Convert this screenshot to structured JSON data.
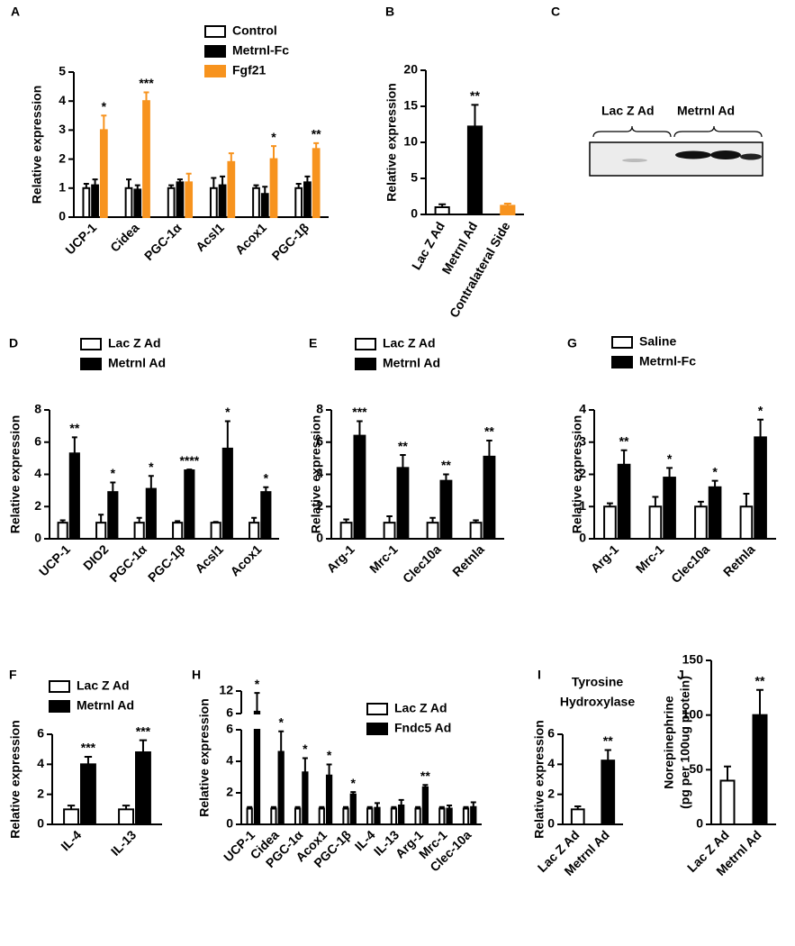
{
  "chart_data": [
    {
      "type": "bar",
      "panel": "A",
      "ylabel": "Relative expression",
      "ylim": [
        0,
        5
      ],
      "yticks": [
        0,
        1,
        2,
        3,
        4,
        5
      ],
      "categories": [
        "UCP-1",
        "Cidea",
        "PGC-1α",
        "Acsl1",
        "Acox1",
        "PGC-1β"
      ],
      "series": [
        {
          "name": "Control",
          "color": "#ffffff",
          "values": [
            1,
            1,
            1,
            1,
            1,
            1
          ],
          "errors": [
            0.15,
            0.3,
            0.1,
            0.35,
            0.1,
            0.15
          ]
        },
        {
          "name": "Metrnl-Fc",
          "color": "#000000",
          "values": [
            1.1,
            0.95,
            1.2,
            1.1,
            0.8,
            1.2
          ],
          "errors": [
            0.2,
            0.15,
            0.1,
            0.3,
            0.25,
            0.2
          ]
        },
        {
          "name": "Fgf21",
          "color": "#f7931e",
          "values": [
            3,
            4,
            1.2,
            1.9,
            2,
            2.35
          ],
          "errors": [
            0.5,
            0.3,
            0.3,
            0.3,
            0.45,
            0.2
          ]
        }
      ],
      "stars": [
        "*",
        "***",
        null,
        null,
        "*",
        "**"
      ],
      "legend": "top"
    },
    {
      "type": "bar",
      "panel": "B",
      "ylabel": "Relative expression",
      "ylim": [
        0,
        20
      ],
      "yticks": [
        0,
        5,
        10,
        15,
        20
      ],
      "categories": [
        "Lac Z Ad",
        "Metrnl Ad",
        "Contralateral Side"
      ],
      "values": [
        1,
        12.2,
        1.2
      ],
      "errors": [
        0.4,
        3,
        0.3
      ],
      "colors": [
        "#ffffff",
        "#000000",
        "#f7931e"
      ],
      "stars": [
        null,
        "**",
        null
      ]
    },
    {
      "type": "blot",
      "panel": "C",
      "labels": [
        "Lac Z Ad",
        "Metrnl Ad"
      ]
    },
    {
      "type": "bar",
      "panel": "D",
      "ylabel": "Relative expression",
      "ylim": [
        0,
        8
      ],
      "yticks": [
        0,
        2,
        4,
        6,
        8
      ],
      "categories": [
        "UCP-1",
        "DIO2",
        "PGC-1α",
        "PGC-1β",
        "Acsl1",
        "Acox1"
      ],
      "series": [
        {
          "name": "Lac Z Ad",
          "color": "#ffffff",
          "values": [
            1,
            1,
            1,
            1,
            1,
            1
          ],
          "errors": [
            0.15,
            0.5,
            0.3,
            0.1,
            0.05,
            0.3
          ]
        },
        {
          "name": "Metrnl Ad",
          "color": "#000000",
          "values": [
            5.3,
            2.9,
            3.1,
            4.25,
            5.6,
            2.9
          ],
          "errors": [
            1,
            0.6,
            0.8,
            0.05,
            1.7,
            0.3
          ]
        }
      ],
      "stars": [
        "**",
        "*",
        "*",
        "****",
        "*",
        "*"
      ],
      "legend": "top"
    },
    {
      "type": "bar",
      "panel": "E",
      "ylabel": "Relative expression",
      "ylim": [
        0,
        8
      ],
      "yticks": [
        0,
        2,
        4,
        6,
        8
      ],
      "categories": [
        "Arg-1",
        "Mrc-1",
        "Clec10a",
        "Retnla"
      ],
      "series": [
        {
          "name": "Lac Z Ad",
          "color": "#ffffff",
          "values": [
            1,
            1,
            1,
            1
          ],
          "errors": [
            0.2,
            0.4,
            0.3,
            0.15
          ]
        },
        {
          "name": "Metrnl Ad",
          "color": "#000000",
          "values": [
            6.4,
            4.4,
            3.6,
            5.1
          ],
          "errors": [
            0.9,
            0.8,
            0.4,
            1
          ]
        }
      ],
      "stars": [
        "***",
        "**",
        "**",
        "**"
      ],
      "legend": "top"
    },
    {
      "type": "bar",
      "panel": "G",
      "ylabel": "Relative expression",
      "ylim": [
        0,
        4
      ],
      "yticks": [
        0,
        1,
        2,
        3,
        4
      ],
      "categories": [
        "Arg-1",
        "Mrc-1",
        "Clec10a",
        "Retnla"
      ],
      "series": [
        {
          "name": "Saline",
          "color": "#ffffff",
          "values": [
            1,
            1,
            1,
            1
          ],
          "errors": [
            0.1,
            0.3,
            0.15,
            0.4
          ]
        },
        {
          "name": "Metrnl-Fc",
          "color": "#000000",
          "values": [
            2.3,
            1.9,
            1.6,
            3.15
          ],
          "errors": [
            0.45,
            0.3,
            0.2,
            0.55
          ]
        }
      ],
      "stars": [
        "**",
        "*",
        "*",
        "*"
      ],
      "legend": "top"
    },
    {
      "type": "bar",
      "panel": "F",
      "ylabel": "Relative expression",
      "ylim": [
        0,
        6
      ],
      "yticks": [
        0,
        2,
        4,
        6
      ],
      "categories": [
        "IL-4",
        "IL-13"
      ],
      "series": [
        {
          "name": "Lac Z Ad",
          "color": "#ffffff",
          "values": [
            1,
            1
          ],
          "errors": [
            0.25,
            0.25
          ]
        },
        {
          "name": "Metrnl Ad",
          "color": "#000000",
          "values": [
            4,
            4.8
          ],
          "errors": [
            0.5,
            0.8
          ]
        }
      ],
      "stars": [
        "***",
        "***"
      ],
      "legend": "top"
    },
    {
      "type": "bar",
      "panel": "H",
      "ylabel": "Relative expression",
      "ylim": [
        0,
        6
      ],
      "yticks": [
        0,
        2,
        4,
        6
      ],
      "ylim_upper": [
        6,
        12
      ],
      "yticks_upper": [
        6,
        12
      ],
      "categories": [
        "UCP-1",
        "Cidea",
        "PGC-1α",
        "Acox1",
        "PGC-1β",
        "IL-4",
        "IL-13",
        "Arg-1",
        "Mrc-1",
        "Clec-10a"
      ],
      "series": [
        {
          "name": "Lac Z Ad",
          "color": "#ffffff",
          "values": [
            1,
            1,
            1,
            1,
            1,
            1,
            1,
            1,
            1,
            1
          ],
          "errors": [
            0.1,
            0.1,
            0.1,
            0.1,
            0.1,
            0.1,
            0.1,
            0.1,
            0.1,
            0.1
          ]
        },
        {
          "name": "Fndc5 Ad",
          "color": "#000000",
          "values": [
            6.5,
            4.6,
            3.3,
            3.1,
            1.9,
            1.05,
            1.2,
            2.35,
            1,
            1.1
          ],
          "errors": [
            5,
            1.3,
            0.9,
            0.7,
            0.15,
            0.3,
            0.35,
            0.15,
            0.2,
            0.3
          ]
        }
      ],
      "stars": [
        "*",
        "*",
        "*",
        "*",
        "*",
        null,
        null,
        "**",
        null,
        null
      ],
      "legend": "top"
    },
    {
      "type": "bar",
      "panel": "I",
      "title": [
        "Tyrosine",
        "Hydroxylase"
      ],
      "ylabel": "Relative expression",
      "ylim": [
        0,
        6
      ],
      "yticks": [
        0,
        2,
        4,
        6
      ],
      "categories": [
        "Lac Z Ad",
        "Metrnl Ad"
      ],
      "values": [
        1,
        4.25
      ],
      "errors": [
        0.2,
        0.7
      ],
      "colors": [
        "#ffffff",
        "#000000"
      ],
      "stars": [
        null,
        "**"
      ]
    },
    {
      "type": "bar",
      "panel": "J",
      "ylabel": [
        "Norepinephrine",
        "(pg per 100ug protein)"
      ],
      "ylim": [
        0,
        150
      ],
      "yticks": [
        0,
        50,
        100,
        150
      ],
      "categories": [
        "Lac Z Ad",
        "Metrnl Ad"
      ],
      "values": [
        40,
        100
      ],
      "errors": [
        13,
        23
      ],
      "colors": [
        "#ffffff",
        "#000000"
      ],
      "stars": [
        null,
        "**"
      ]
    }
  ]
}
